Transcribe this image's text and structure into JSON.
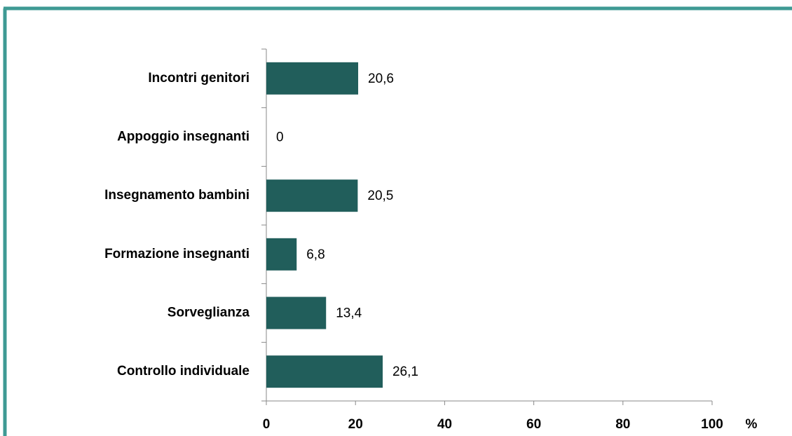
{
  "chart_data": {
    "type": "hbar",
    "categories": [
      "Incontri genitori",
      "Appoggio insegnanti",
      "Insegnamento bambini",
      "Formazione insegnanti",
      "Sorveglianza",
      "Controllo individuale"
    ],
    "values": [
      20.6,
      0,
      20.5,
      6.8,
      13.4,
      26.1
    ],
    "value_labels": [
      "20,6",
      "0",
      "20,5",
      "6,8",
      "13,4",
      "26,1"
    ],
    "color": "#215e5b",
    "xlim": [
      0,
      100
    ],
    "xticks": [
      0,
      20,
      40,
      60,
      80,
      100
    ],
    "x_label": "%"
  }
}
